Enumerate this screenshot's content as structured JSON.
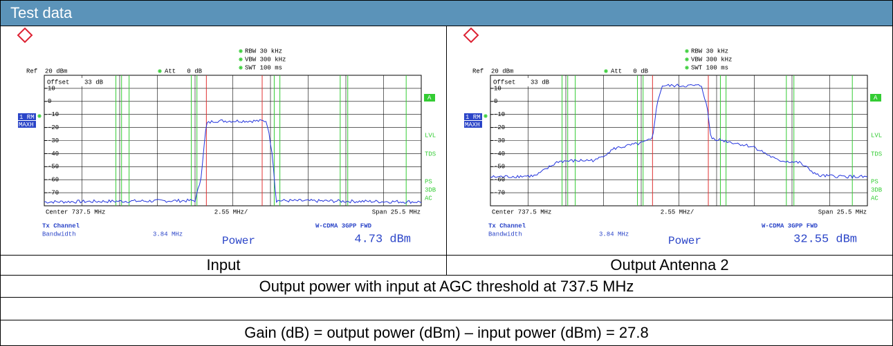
{
  "header": {
    "title": "Test data"
  },
  "screens": [
    {
      "rbw": "RBW 30 kHz",
      "vbw": "VBW 300 kHz",
      "swt": "SWT 100 ms",
      "ref": "Ref  20 dBm",
      "att": "Att   0 dB",
      "offset": "Offset    33 dB",
      "ylabels": [
        "10",
        "0",
        "-10",
        "-20",
        "-30",
        "-40",
        "-50",
        "-60",
        "-70"
      ],
      "trace_label": "1 RM",
      "trace_mode": "MAXH",
      "side_box": "A",
      "side_labels": [
        "LVL",
        "TDS",
        "PS",
        "3DB",
        "AC"
      ],
      "center": "Center 737.5 MHz",
      "div": "2.55 MHz/",
      "span": "Span 25.5 MHz",
      "tx_channel": "Tx Channel",
      "bandwidth_label": "Bandwidth",
      "bandwidth": "3.84 MHz",
      "standard": "W-CDMA 3GPP FWD",
      "power_label": "Power",
      "power": "4.73 dBm"
    },
    {
      "rbw": "RBW 30 kHz",
      "vbw": "VBW 300 kHz",
      "swt": "SWT 100 ms",
      "ref": "Ref  20 dBm",
      "att": "Att   0 dB",
      "offset": "Offset    33 dB",
      "ylabels": [
        "10",
        "0",
        "-10",
        "-20",
        "-30",
        "-40",
        "-50",
        "-60",
        "-70"
      ],
      "trace_label": "1 RM",
      "trace_mode": "MAXH",
      "side_box": "A",
      "side_labels": [
        "LVL",
        "TDS",
        "PS",
        "3DB",
        "AC"
      ],
      "center": "Center 737.5 MHz",
      "div": "2.55 MHz/",
      "span": "Span 25.5 MHz",
      "tx_channel": "Tx Channel",
      "bandwidth_label": "Bandwidth",
      "bandwidth": "3.84 MHz",
      "standard": "W-CDMA 3GPP FWD",
      "power_label": "Power",
      "power": "32.55 dBm"
    }
  ],
  "captions": [
    "Input",
    "Output Antenna 2"
  ],
  "summary": "Output power with input at AGC threshold at 737.5 MHz",
  "gain": "Gain (dB) = output power (dBm) – input power (dBm) = 27.8"
}
